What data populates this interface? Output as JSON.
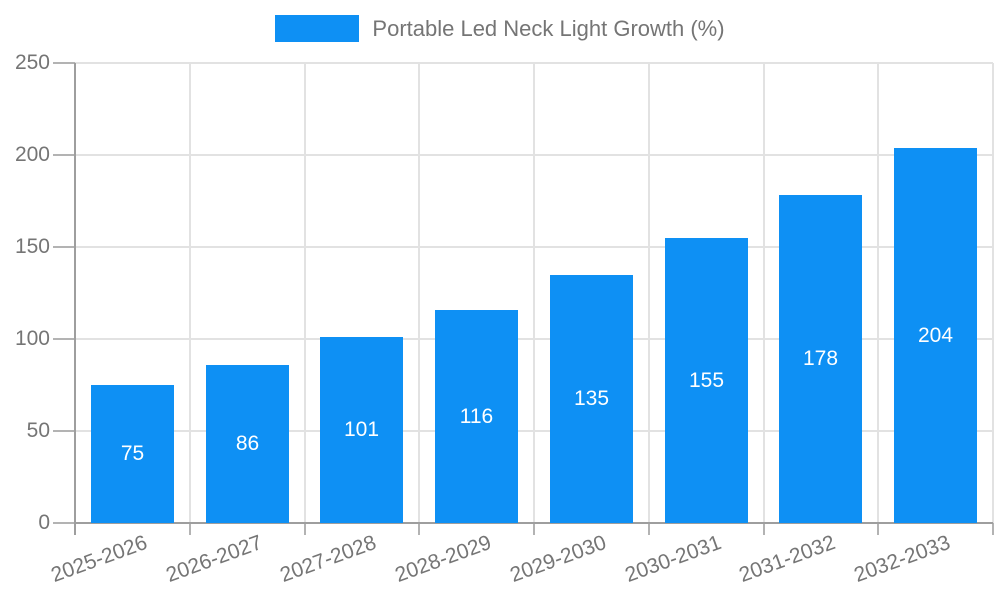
{
  "chart_data": {
    "type": "bar",
    "title": "",
    "series_name": "Portable Led Neck Light Growth (%)",
    "categories": [
      "2025-2026",
      "2026-2027",
      "2027-2028",
      "2028-2029",
      "2029-2030",
      "2030-2031",
      "2031-2032",
      "2032-2033"
    ],
    "values": [
      75,
      86,
      101,
      116,
      135,
      155,
      178,
      204
    ],
    "xlabel": "",
    "ylabel": "",
    "ylim": [
      0,
      250
    ],
    "yticks": [
      0,
      50,
      100,
      150,
      200,
      250
    ],
    "grid": true,
    "legend_position": "top",
    "value_labels_shown": true,
    "colors": {
      "bar": "#0e90f4",
      "grid": "#e2e2e2",
      "axis": "#9e9e9e",
      "tick": "#b3b3b3",
      "text": "#757575",
      "value_label": "#ffffff",
      "background": "#ffffff"
    }
  }
}
